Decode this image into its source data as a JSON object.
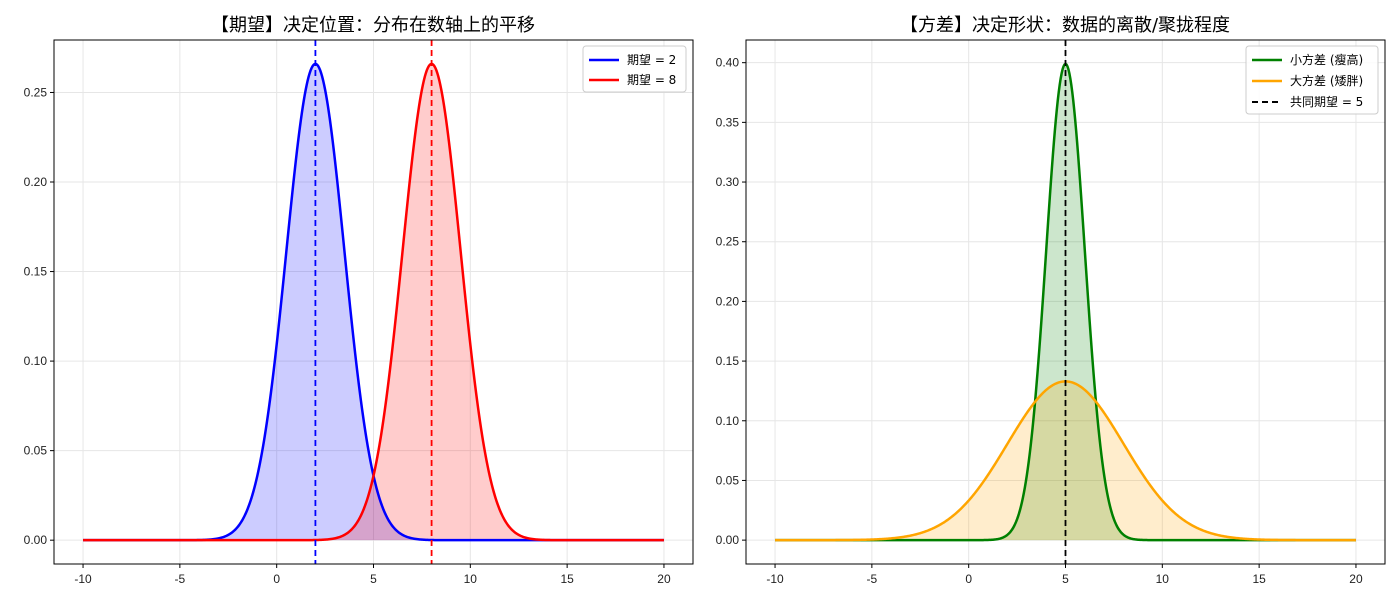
{
  "chart_data": [
    {
      "type": "line",
      "title": "【期望】决定位置：分布在数轴上的平移",
      "xlabel": "",
      "ylabel": "",
      "xlim": [
        -11.5,
        21.5
      ],
      "ylim": [
        -0.0133,
        0.2793
      ],
      "xticks": [
        "-10",
        "-5",
        "0",
        "5",
        "10",
        "15",
        "20"
      ],
      "yticks": [
        "0.00",
        "0.05",
        "0.10",
        "0.15",
        "0.20",
        "0.25"
      ],
      "grid": true,
      "legend_position": "upper right",
      "x_range": [
        -10,
        20
      ],
      "series": [
        {
          "name": "期望 = 2",
          "distribution": "normal",
          "mean": 2,
          "std": 1.5,
          "peak": 0.266,
          "color": "#0000ff",
          "fill": "#0000ff",
          "fill_alpha": 0.2
        },
        {
          "name": "期望 = 8",
          "distribution": "normal",
          "mean": 8,
          "std": 1.5,
          "peak": 0.266,
          "color": "#ff0000",
          "fill": "#ff0000",
          "fill_alpha": 0.2
        }
      ],
      "vlines": [
        {
          "x": 2,
          "color": "#0000ff",
          "style": "dashed"
        },
        {
          "x": 8,
          "color": "#ff0000",
          "style": "dashed"
        }
      ]
    },
    {
      "type": "line",
      "title": "【方差】决定形状：数据的离散/聚拢程度",
      "xlabel": "",
      "ylabel": "",
      "xlim": [
        -11.5,
        21.5
      ],
      "ylim": [
        -0.02,
        0.419
      ],
      "xticks": [
        "-10",
        "-5",
        "0",
        "5",
        "10",
        "15",
        "20"
      ],
      "yticks": [
        "0.00",
        "0.05",
        "0.10",
        "0.15",
        "0.20",
        "0.25",
        "0.30",
        "0.35",
        "0.40"
      ],
      "grid": true,
      "legend_position": "upper right",
      "x_range": [
        -10,
        20
      ],
      "series": [
        {
          "name": "小方差 (瘦高)",
          "distribution": "normal",
          "mean": 5,
          "std": 1,
          "peak": 0.399,
          "color": "#008000",
          "fill": "#008000",
          "fill_alpha": 0.2
        },
        {
          "name": "大方差 (矮胖)",
          "distribution": "normal",
          "mean": 5,
          "std": 3,
          "peak": 0.133,
          "color": "#ffa500",
          "fill": "#ffa500",
          "fill_alpha": 0.2
        }
      ],
      "vlines": [
        {
          "x": 5,
          "color": "#000000",
          "style": "dashed",
          "name": "共同期望 = 5"
        }
      ]
    }
  ],
  "left": {
    "title": "【期望】决定位置：分布在数轴上的平移",
    "legend": [
      "期望 = 2",
      "期望 = 8"
    ],
    "xticks": [
      "-10",
      "-5",
      "0",
      "5",
      "10",
      "15",
      "20"
    ],
    "yticks": [
      "0.00",
      "0.05",
      "0.10",
      "0.15",
      "0.20",
      "0.25"
    ]
  },
  "right": {
    "title": "【方差】决定形状：数据的离散/聚拢程度",
    "legend": [
      "小方差 (瘦高)",
      "大方差 (矮胖)",
      "共同期望 = 5"
    ],
    "xticks": [
      "-10",
      "-5",
      "0",
      "5",
      "10",
      "15",
      "20"
    ],
    "yticks": [
      "0.00",
      "0.05",
      "0.10",
      "0.15",
      "0.20",
      "0.25",
      "0.30",
      "0.35",
      "0.40"
    ]
  }
}
